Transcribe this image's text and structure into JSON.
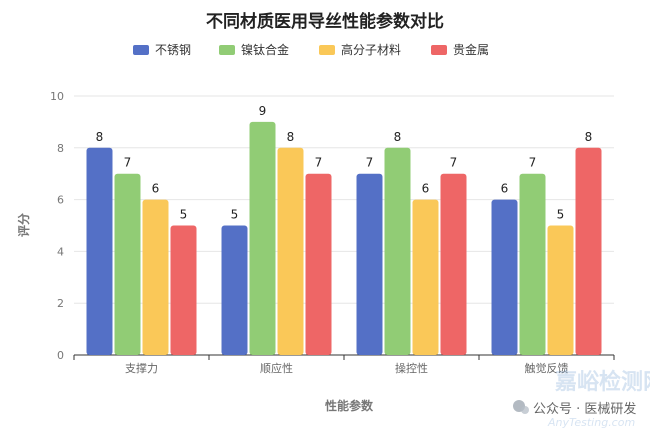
{
  "chart_data": {
    "type": "bar",
    "title": "不同材质医用导丝性能参数对比",
    "xlabel": "性能参数",
    "ylabel": "评分",
    "categories": [
      "支撑力",
      "顺应性",
      "操控性",
      "触觉反馈"
    ],
    "series": [
      {
        "name": "不锈钢",
        "values": [
          8,
          5,
          7,
          6
        ],
        "color": "#5470c6"
      },
      {
        "name": "镍钛合金",
        "values": [
          7,
          9,
          8,
          7
        ],
        "color": "#91cc75"
      },
      {
        "name": "高分子材料",
        "values": [
          6,
          8,
          6,
          5
        ],
        "color": "#fac858"
      },
      {
        "name": "贵金属",
        "values": [
          5,
          7,
          7,
          8
        ],
        "color": "#ee6666"
      }
    ],
    "ylim": [
      0,
      10
    ],
    "yticks": [
      0,
      2,
      4,
      6,
      8,
      10
    ],
    "grid": true,
    "legend_position": "top-center",
    "data_labels": true
  },
  "watermark": {
    "brand": "嘉峪检测网",
    "wechat_text": "公众号 · 医械研发",
    "url": "AnyTesting.com"
  },
  "colors": {
    "axis": "#333333",
    "grid": "#e6e6e6"
  }
}
